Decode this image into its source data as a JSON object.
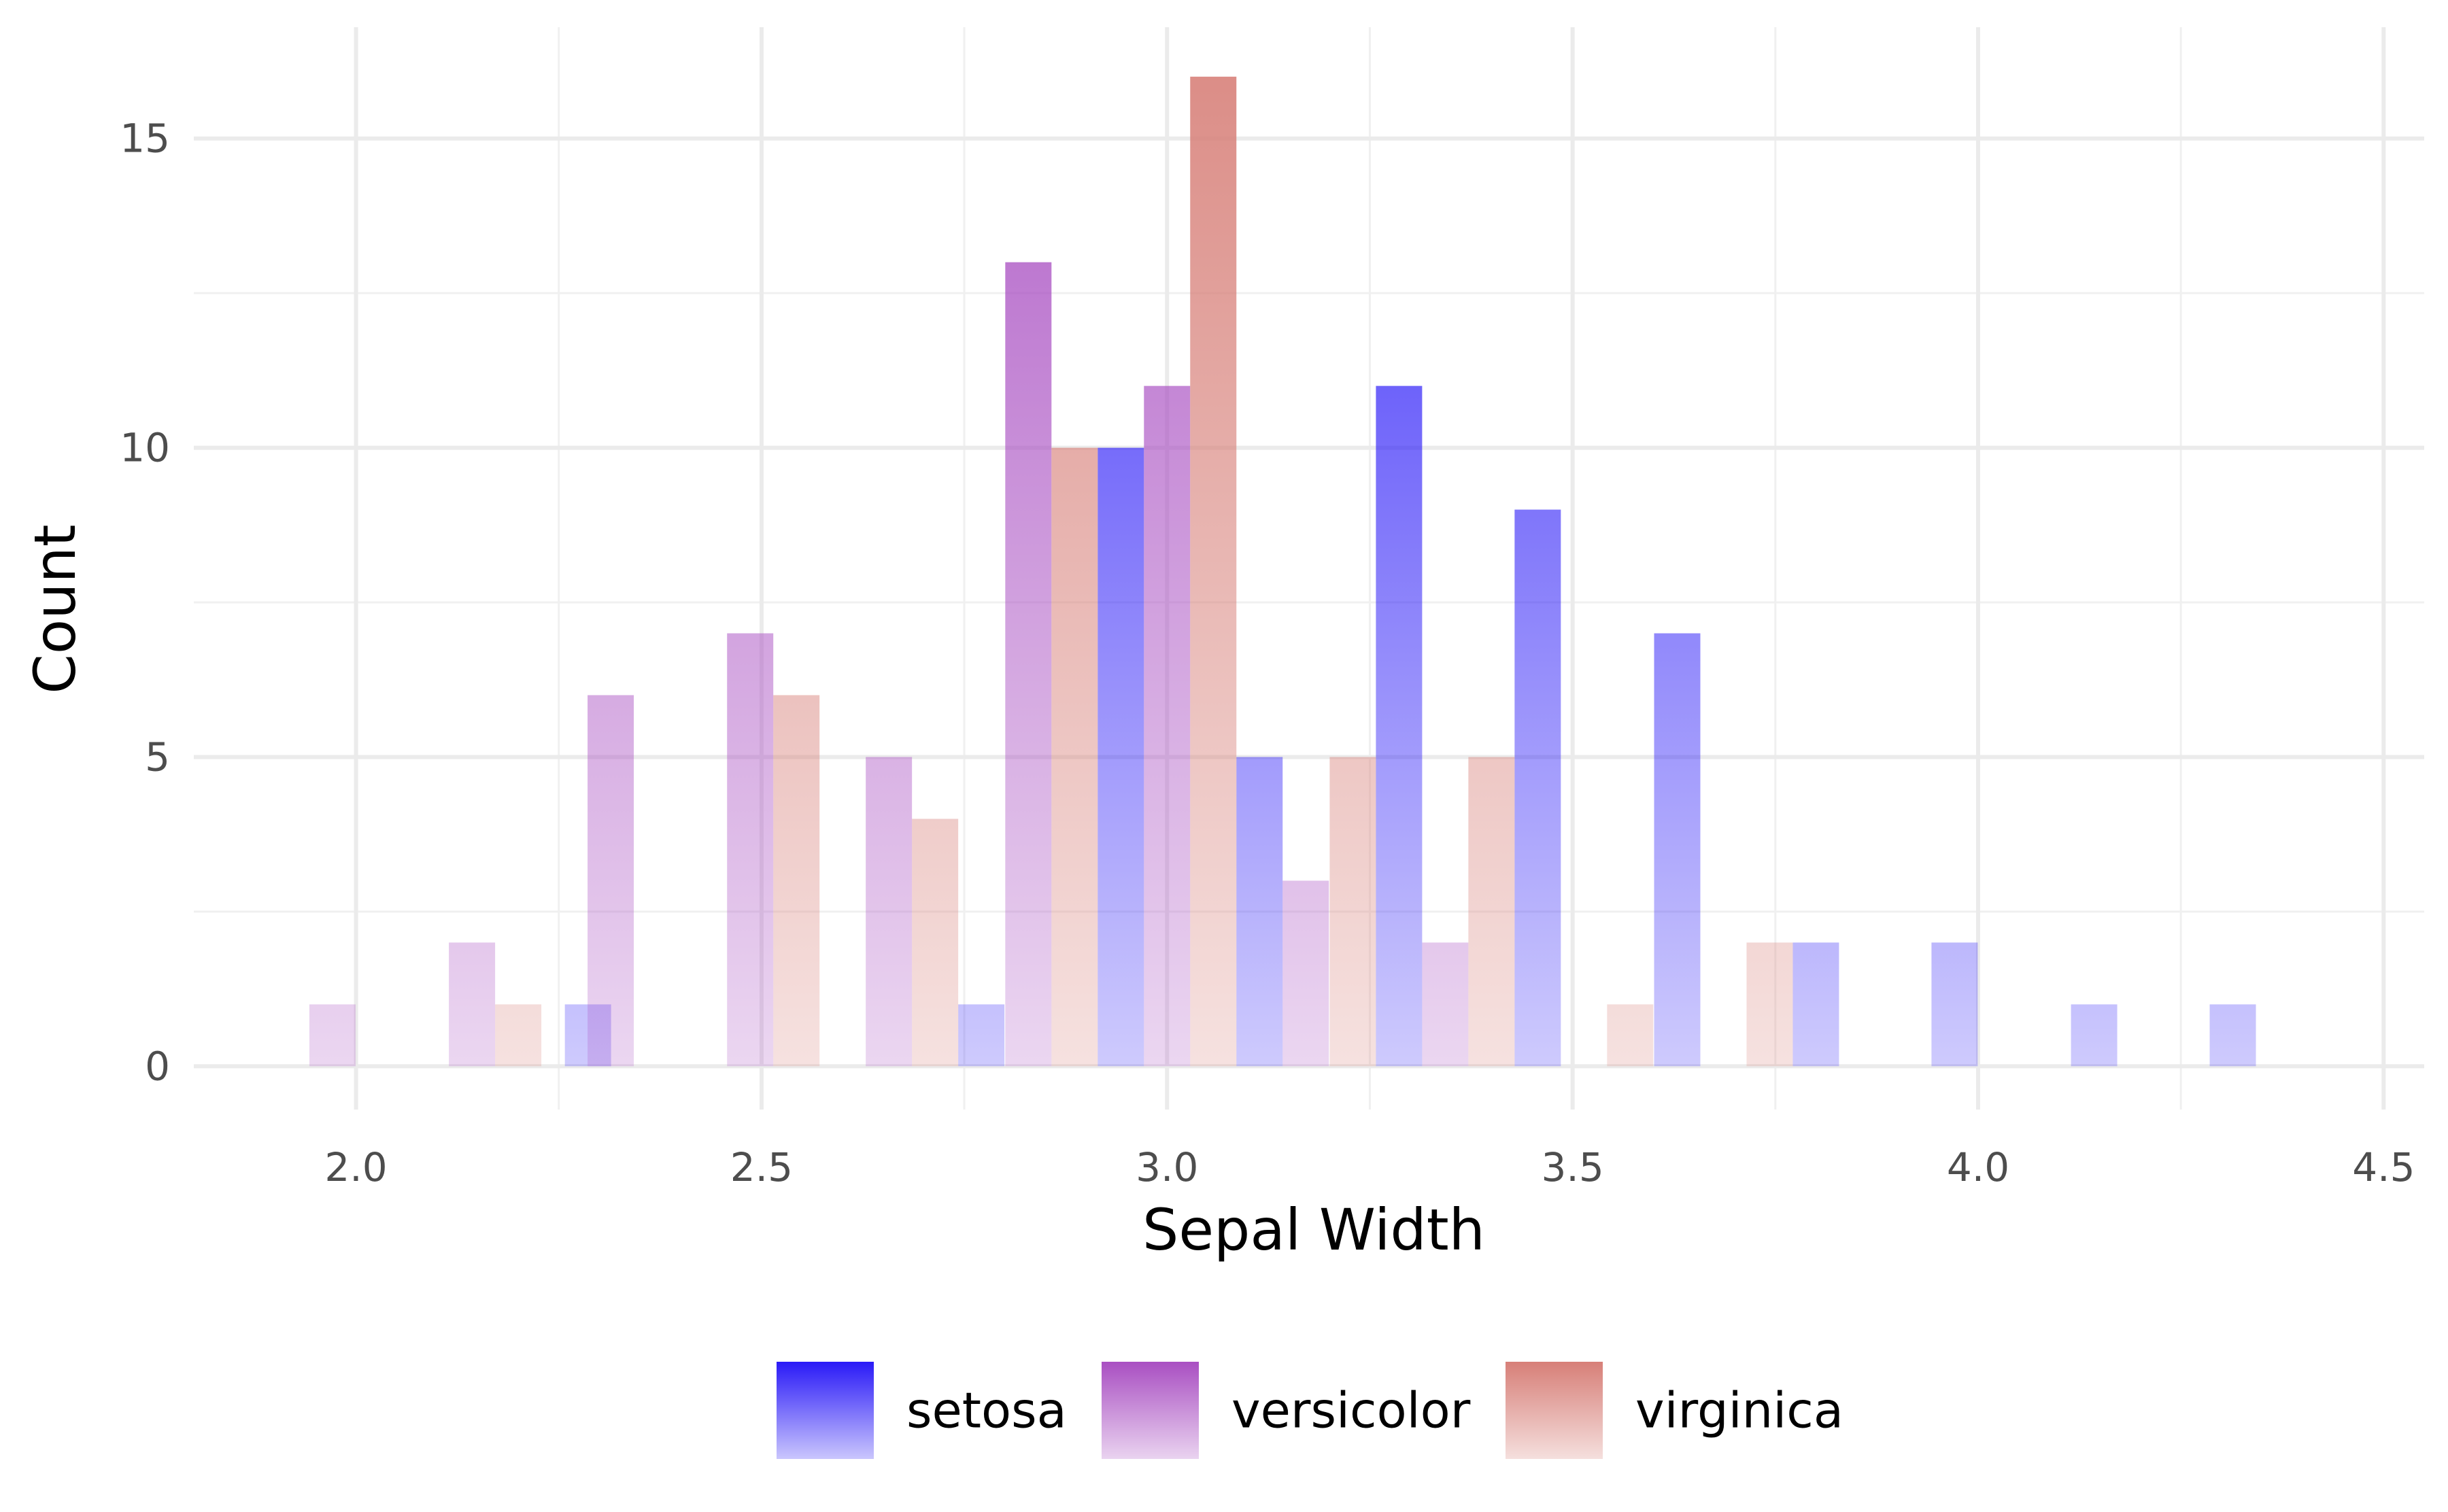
{
  "chart_data": {
    "type": "bar",
    "title": "",
    "xlabel": "Sepal Width",
    "ylabel": "Count",
    "xlim": [
      1.8,
      4.55
    ],
    "ylim": [
      -0.7,
      16.8
    ],
    "x_ticks": [
      "2.0",
      "2.5",
      "3.0",
      "3.5",
      "4.0",
      "4.5"
    ],
    "y_ticks": [
      "0",
      "5",
      "10",
      "15"
    ],
    "grid": true,
    "legend_position": "bottom",
    "bar_width": 0.057,
    "series": [
      {
        "name": "setosa",
        "color": "#2a1af7",
        "x": [
          2.286,
          2.771,
          2.943,
          3.114,
          3.286,
          3.457,
          3.629,
          3.8,
          3.971,
          4.143,
          4.314
        ],
        "values": [
          1,
          1,
          10,
          5,
          11,
          9,
          7,
          2,
          2,
          1,
          1
        ]
      },
      {
        "name": "versicolor",
        "color": "#a94fc2",
        "x": [
          1.971,
          2.143,
          2.314,
          2.486,
          2.657,
          2.829,
          3.0,
          3.171,
          3.343
        ],
        "values": [
          1,
          2,
          6,
          7,
          5,
          13,
          11,
          3,
          2
        ]
      },
      {
        "name": "virginica",
        "color": "#d77f78",
        "x": [
          2.2,
          2.543,
          2.714,
          2.886,
          3.057,
          3.229,
          3.4,
          3.571,
          3.743
        ],
        "values": [
          1,
          6,
          4,
          10,
          16,
          5,
          5,
          1,
          2
        ]
      }
    ]
  }
}
